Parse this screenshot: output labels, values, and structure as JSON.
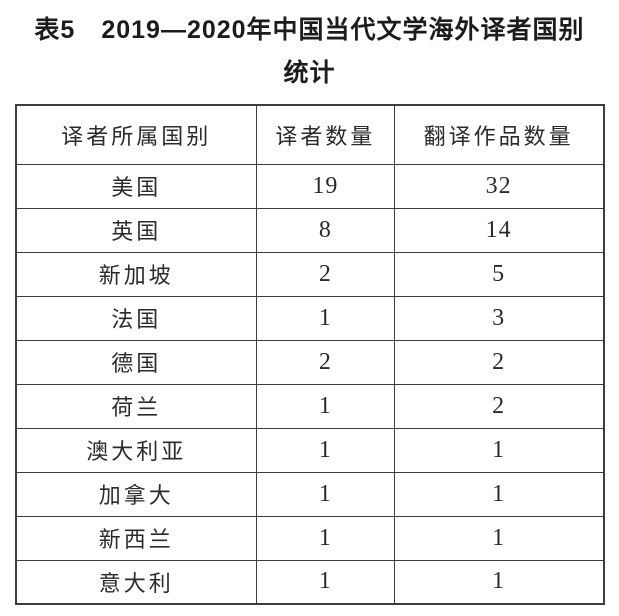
{
  "title": {
    "line1": "表5　2019—2020年中国当代文学海外译者国别",
    "line2": "统计"
  },
  "table": {
    "columns": [
      "译者所属国别",
      "译者数量",
      "翻译作品数量"
    ],
    "rows": [
      {
        "country": "美国",
        "translators": "19",
        "works": "32"
      },
      {
        "country": "英国",
        "translators": "8",
        "works": "14"
      },
      {
        "country": "新加坡",
        "translators": "2",
        "works": "5"
      },
      {
        "country": "法国",
        "translators": "1",
        "works": "3"
      },
      {
        "country": "德国",
        "translators": "2",
        "works": "2"
      },
      {
        "country": "荷兰",
        "translators": "1",
        "works": "2"
      },
      {
        "country": "澳大利亚",
        "translators": "1",
        "works": "1"
      },
      {
        "country": "加拿大",
        "translators": "1",
        "works": "1"
      },
      {
        "country": "新西兰",
        "translators": "1",
        "works": "1"
      },
      {
        "country": "意大利",
        "translators": "1",
        "works": "1"
      }
    ]
  },
  "colors": {
    "border": "#3d3d3d",
    "text": "#2b2b2b",
    "title": "#1c1c1c",
    "background": "#ffffff"
  }
}
